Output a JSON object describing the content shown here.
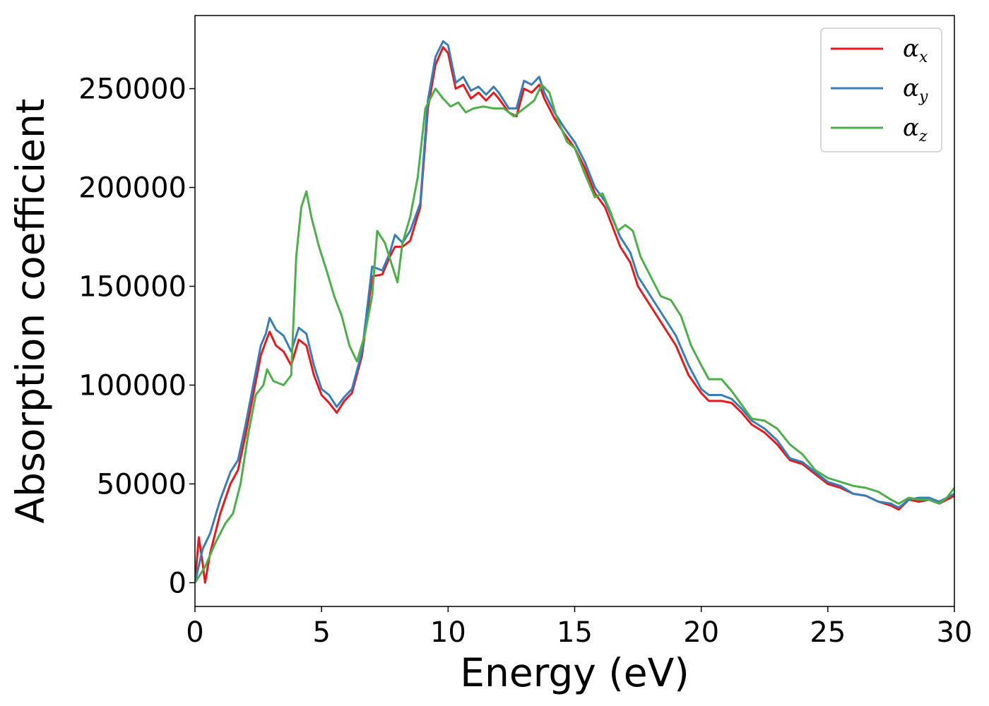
{
  "chart_data": {
    "type": "line",
    "xlabel": "Energy (eV)",
    "ylabel": "Absorption coefficient",
    "xlim": [
      0,
      30
    ],
    "ylim": [
      -12000,
      287000
    ],
    "xticks": [
      0,
      5,
      10,
      15,
      20,
      25,
      30
    ],
    "yticks": [
      0,
      50000,
      100000,
      150000,
      200000,
      250000
    ],
    "xtick_labels": [
      "0",
      "5",
      "10",
      "15",
      "20",
      "25",
      "30"
    ],
    "ytick_labels": [
      "0",
      "50000",
      "100000",
      "150000",
      "200000",
      "250000"
    ],
    "grid": false,
    "legend_position": "top-right",
    "series": [
      {
        "name": "αx",
        "symbol": "α",
        "subscript": "x",
        "color": "#e41a1c",
        "points": [
          [
            0,
            0
          ],
          [
            0.15,
            23000
          ],
          [
            0.3,
            10000
          ],
          [
            0.4,
            0
          ],
          [
            0.6,
            15000
          ],
          [
            1.0,
            35000
          ],
          [
            1.4,
            50000
          ],
          [
            1.7,
            57000
          ],
          [
            2.0,
            75000
          ],
          [
            2.3,
            95000
          ],
          [
            2.6,
            115000
          ],
          [
            2.8,
            122000
          ],
          [
            2.95,
            127000
          ],
          [
            3.2,
            120000
          ],
          [
            3.5,
            117000
          ],
          [
            3.8,
            110000
          ],
          [
            4.1,
            123000
          ],
          [
            4.4,
            120000
          ],
          [
            4.7,
            105000
          ],
          [
            5.0,
            95000
          ],
          [
            5.3,
            91000
          ],
          [
            5.6,
            86000
          ],
          [
            5.9,
            92000
          ],
          [
            6.2,
            96000
          ],
          [
            6.6,
            115000
          ],
          [
            7.0,
            155000
          ],
          [
            7.4,
            156000
          ],
          [
            7.7,
            165000
          ],
          [
            7.9,
            170000
          ],
          [
            8.2,
            170000
          ],
          [
            8.5,
            173000
          ],
          [
            8.9,
            190000
          ],
          [
            9.2,
            240000
          ],
          [
            9.5,
            262000
          ],
          [
            9.8,
            271000
          ],
          [
            10.0,
            268000
          ],
          [
            10.3,
            250000
          ],
          [
            10.6,
            252000
          ],
          [
            10.9,
            245000
          ],
          [
            11.2,
            248000
          ],
          [
            11.5,
            244000
          ],
          [
            11.8,
            248000
          ],
          [
            12.0,
            245000
          ],
          [
            12.4,
            238000
          ],
          [
            12.7,
            236000
          ],
          [
            13.0,
            250000
          ],
          [
            13.3,
            248000
          ],
          [
            13.6,
            252000
          ],
          [
            13.8,
            245000
          ],
          [
            14.2,
            235000
          ],
          [
            14.6,
            227000
          ],
          [
            15.0,
            220000
          ],
          [
            15.4,
            210000
          ],
          [
            15.8,
            197000
          ],
          [
            16.2,
            190000
          ],
          [
            16.5,
            180000
          ],
          [
            16.8,
            170000
          ],
          [
            17.2,
            162000
          ],
          [
            17.5,
            150000
          ],
          [
            18.0,
            140000
          ],
          [
            18.5,
            130000
          ],
          [
            19.0,
            120000
          ],
          [
            19.5,
            105000
          ],
          [
            20.0,
            96000
          ],
          [
            20.3,
            92000
          ],
          [
            20.8,
            92000
          ],
          [
            21.2,
            91000
          ],
          [
            21.6,
            86000
          ],
          [
            22.0,
            80000
          ],
          [
            22.5,
            76000
          ],
          [
            23.0,
            70000
          ],
          [
            23.5,
            62000
          ],
          [
            24.0,
            60000
          ],
          [
            24.5,
            55000
          ],
          [
            25.0,
            50000
          ],
          [
            25.5,
            48000
          ],
          [
            26.0,
            45000
          ],
          [
            26.5,
            44000
          ],
          [
            27.0,
            41000
          ],
          [
            27.5,
            39000
          ],
          [
            27.8,
            37000
          ],
          [
            28.2,
            42000
          ],
          [
            28.6,
            41000
          ],
          [
            29.0,
            42000
          ],
          [
            29.4,
            40000
          ],
          [
            30.0,
            44000
          ]
        ]
      },
      {
        "name": "αy",
        "symbol": "α",
        "subscript": "y",
        "color": "#377eb8",
        "points": [
          [
            0,
            0
          ],
          [
            0.3,
            17000
          ],
          [
            0.6,
            25000
          ],
          [
            1.0,
            42000
          ],
          [
            1.4,
            56000
          ],
          [
            1.7,
            62000
          ],
          [
            2.0,
            80000
          ],
          [
            2.3,
            100000
          ],
          [
            2.6,
            120000
          ],
          [
            2.8,
            126000
          ],
          [
            2.95,
            134000
          ],
          [
            3.2,
            128000
          ],
          [
            3.5,
            125000
          ],
          [
            3.8,
            117000
          ],
          [
            4.1,
            129000
          ],
          [
            4.4,
            126000
          ],
          [
            4.7,
            110000
          ],
          [
            5.0,
            98000
          ],
          [
            5.3,
            95000
          ],
          [
            5.6,
            89000
          ],
          [
            5.9,
            94000
          ],
          [
            6.2,
            98000
          ],
          [
            6.6,
            117000
          ],
          [
            7.0,
            160000
          ],
          [
            7.4,
            158000
          ],
          [
            7.7,
            167000
          ],
          [
            7.9,
            176000
          ],
          [
            8.2,
            172000
          ],
          [
            8.5,
            178000
          ],
          [
            8.9,
            192000
          ],
          [
            9.2,
            244000
          ],
          [
            9.5,
            266000
          ],
          [
            9.8,
            274000
          ],
          [
            10.0,
            272000
          ],
          [
            10.3,
            253000
          ],
          [
            10.6,
            256000
          ],
          [
            10.9,
            249000
          ],
          [
            11.2,
            251000
          ],
          [
            11.5,
            247000
          ],
          [
            11.8,
            251000
          ],
          [
            12.0,
            248000
          ],
          [
            12.4,
            240000
          ],
          [
            12.7,
            240000
          ],
          [
            13.0,
            254000
          ],
          [
            13.3,
            252000
          ],
          [
            13.6,
            256000
          ],
          [
            13.8,
            248000
          ],
          [
            14.2,
            238000
          ],
          [
            14.6,
            230000
          ],
          [
            15.0,
            223000
          ],
          [
            15.4,
            213000
          ],
          [
            15.8,
            200000
          ],
          [
            16.2,
            193000
          ],
          [
            16.5,
            184000
          ],
          [
            16.8,
            175000
          ],
          [
            17.2,
            167000
          ],
          [
            17.5,
            155000
          ],
          [
            18.0,
            145000
          ],
          [
            18.5,
            135000
          ],
          [
            19.0,
            125000
          ],
          [
            19.5,
            110000
          ],
          [
            20.0,
            98000
          ],
          [
            20.3,
            95000
          ],
          [
            20.8,
            95000
          ],
          [
            21.2,
            93000
          ],
          [
            21.6,
            88000
          ],
          [
            22.0,
            82000
          ],
          [
            22.5,
            78000
          ],
          [
            23.0,
            72000
          ],
          [
            23.5,
            63000
          ],
          [
            24.0,
            61000
          ],
          [
            24.5,
            56000
          ],
          [
            25.0,
            51000
          ],
          [
            25.5,
            49000
          ],
          [
            26.0,
            45000
          ],
          [
            26.5,
            44000
          ],
          [
            27.0,
            41000
          ],
          [
            27.5,
            40000
          ],
          [
            27.8,
            38000
          ],
          [
            28.2,
            42000
          ],
          [
            28.6,
            43000
          ],
          [
            29.0,
            43000
          ],
          [
            29.4,
            41000
          ],
          [
            30.0,
            45000
          ]
        ]
      },
      {
        "name": "αz",
        "symbol": "α",
        "subscript": "z",
        "color": "#4daf4a",
        "points": [
          [
            0,
            0
          ],
          [
            0.4,
            8000
          ],
          [
            0.8,
            20000
          ],
          [
            1.2,
            30000
          ],
          [
            1.5,
            35000
          ],
          [
            1.8,
            50000
          ],
          [
            2.1,
            75000
          ],
          [
            2.4,
            95000
          ],
          [
            2.7,
            100000
          ],
          [
            2.85,
            108000
          ],
          [
            3.1,
            102000
          ],
          [
            3.5,
            100000
          ],
          [
            3.8,
            105000
          ],
          [
            4.0,
            165000
          ],
          [
            4.2,
            190000
          ],
          [
            4.4,
            198000
          ],
          [
            4.6,
            185000
          ],
          [
            4.9,
            170000
          ],
          [
            5.2,
            158000
          ],
          [
            5.5,
            145000
          ],
          [
            5.8,
            135000
          ],
          [
            6.1,
            120000
          ],
          [
            6.4,
            112000
          ],
          [
            6.7,
            125000
          ],
          [
            7.0,
            145000
          ],
          [
            7.2,
            178000
          ],
          [
            7.5,
            172000
          ],
          [
            7.8,
            160000
          ],
          [
            8.0,
            152000
          ],
          [
            8.2,
            172000
          ],
          [
            8.5,
            185000
          ],
          [
            8.8,
            205000
          ],
          [
            9.1,
            240000
          ],
          [
            9.5,
            250000
          ],
          [
            9.8,
            245000
          ],
          [
            10.1,
            241000
          ],
          [
            10.4,
            243000
          ],
          [
            10.7,
            238000
          ],
          [
            11.0,
            240000
          ],
          [
            11.4,
            241000
          ],
          [
            11.8,
            240000
          ],
          [
            12.2,
            240000
          ],
          [
            12.6,
            236000
          ],
          [
            13.0,
            240000
          ],
          [
            13.4,
            244000
          ],
          [
            13.7,
            252000
          ],
          [
            14.0,
            248000
          ],
          [
            14.3,
            235000
          ],
          [
            14.7,
            223000
          ],
          [
            15.0,
            220000
          ],
          [
            15.4,
            207000
          ],
          [
            15.8,
            195000
          ],
          [
            16.1,
            197000
          ],
          [
            16.4,
            188000
          ],
          [
            16.7,
            178000
          ],
          [
            17.0,
            181000
          ],
          [
            17.3,
            178000
          ],
          [
            17.6,
            165000
          ],
          [
            18.0,
            155000
          ],
          [
            18.4,
            145000
          ],
          [
            18.8,
            143000
          ],
          [
            19.2,
            135000
          ],
          [
            19.6,
            120000
          ],
          [
            20.0,
            110000
          ],
          [
            20.3,
            103000
          ],
          [
            20.8,
            103000
          ],
          [
            21.2,
            97000
          ],
          [
            21.6,
            90000
          ],
          [
            22.0,
            83000
          ],
          [
            22.5,
            82000
          ],
          [
            23.0,
            78000
          ],
          [
            23.5,
            70000
          ],
          [
            24.0,
            65000
          ],
          [
            24.5,
            57000
          ],
          [
            25.0,
            53000
          ],
          [
            25.5,
            51000
          ],
          [
            26.0,
            49000
          ],
          [
            26.5,
            48000
          ],
          [
            27.0,
            46000
          ],
          [
            27.5,
            42000
          ],
          [
            27.8,
            40000
          ],
          [
            28.2,
            43000
          ],
          [
            28.6,
            42000
          ],
          [
            29.0,
            42000
          ],
          [
            29.4,
            40000
          ],
          [
            29.7,
            43000
          ],
          [
            30.0,
            48000
          ]
        ]
      }
    ]
  }
}
